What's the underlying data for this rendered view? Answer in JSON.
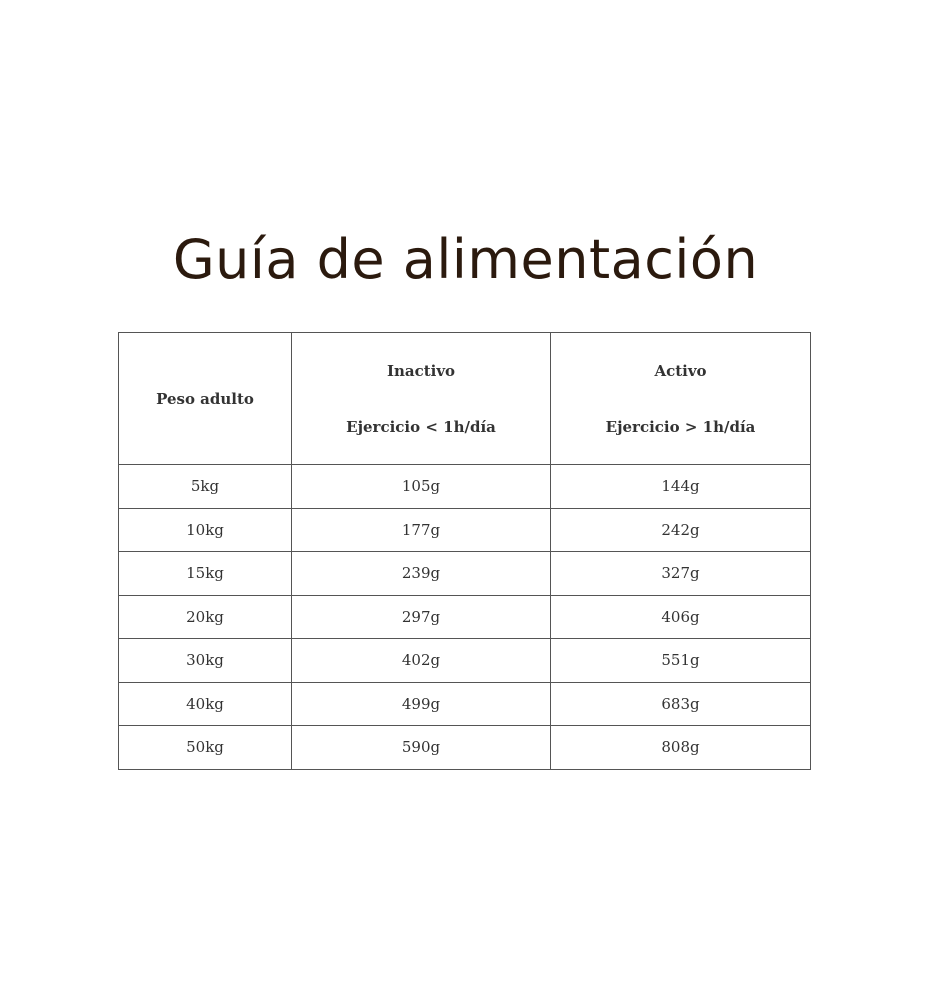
{
  "title": "Guía de alimentación",
  "table": {
    "headers": [
      {
        "label": "Peso adulto",
        "sub": ""
      },
      {
        "label": "Inactivo",
        "sub": "Ejercicio < 1h/día"
      },
      {
        "label": "Activo",
        "sub": "Ejercicio > 1h/día"
      }
    ],
    "rows": [
      [
        "5kg",
        "105g",
        "144g"
      ],
      [
        "10kg",
        "177g",
        "242g"
      ],
      [
        "15kg",
        "239g",
        "327g"
      ],
      [
        "20kg",
        "297g",
        "406g"
      ],
      [
        "30kg",
        "402g",
        "551g"
      ],
      [
        "40kg",
        "499g",
        "683g"
      ],
      [
        "50kg",
        "590g",
        "808g"
      ]
    ]
  }
}
